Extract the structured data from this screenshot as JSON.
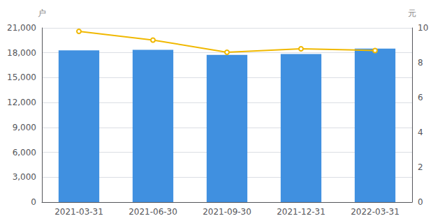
{
  "chart_data": {
    "type": "bar",
    "categories": [
      "2021-03-31",
      "2021-06-30",
      "2021-09-30",
      "2021-12-31",
      "2022-03-31"
    ],
    "series": [
      {
        "type": "bar",
        "color": "#4090e0",
        "values": [
          18300,
          18350,
          17750,
          17850,
          18500
        ]
      },
      {
        "type": "line",
        "axis": "y2",
        "color": "#f0b800",
        "marker": "circle",
        "values": [
          9.8,
          9.3,
          8.6,
          8.8,
          8.7
        ]
      }
    ],
    "ylabel": "户",
    "y2label": "元",
    "ylim": [
      0,
      21000
    ],
    "yticks": [
      0,
      {
        "value": 3000,
        "label": "3,000"
      },
      {
        "value": 6000,
        "label": "6,000"
      },
      {
        "value": 9000,
        "label": "9,000"
      },
      {
        "value": 12000,
        "label": "12,000"
      },
      {
        "value": 15000,
        "label": "15,000"
      },
      {
        "value": 18000,
        "label": "18,000"
      },
      {
        "value": 21000,
        "label": "21,000"
      }
    ],
    "y2lim": [
      0,
      10
    ],
    "y2ticks": [
      0,
      2,
      4,
      6,
      8,
      10
    ],
    "grid": true
  }
}
